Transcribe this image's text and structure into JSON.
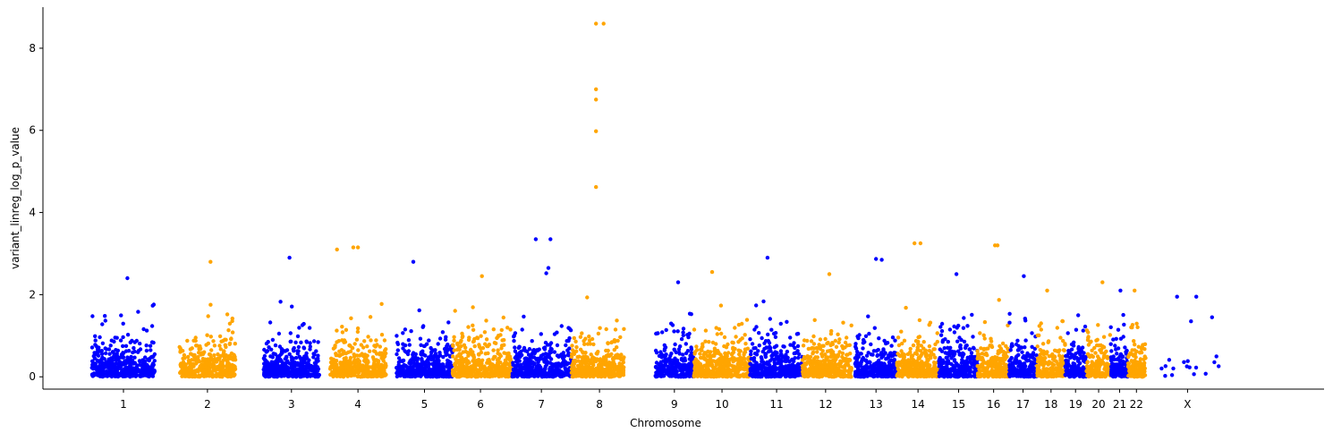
{
  "chart_data": {
    "type": "scatter",
    "title": "",
    "xlabel": "Chromosome",
    "ylabel": "variant_linreg_log_p_value",
    "ylim": [
      -0.3,
      9.0
    ],
    "yticks": [
      0,
      2,
      4,
      6,
      8
    ],
    "grid": false,
    "legend": "none",
    "colors": {
      "odd_index": "#0000ff",
      "even_index": "#ffa500"
    },
    "chromosomes": [
      {
        "label": "1",
        "start": 0.3,
        "end": 1.2,
        "label_pos": 0.75,
        "color": "#0000ff",
        "peak": 2.4
      },
      {
        "label": "2",
        "start": 1.55,
        "end": 2.35,
        "label_pos": 1.95,
        "color": "#ffa500",
        "peak": 2.8
      },
      {
        "label": "3",
        "start": 2.75,
        "end": 3.55,
        "label_pos": 3.15,
        "color": "#0000ff",
        "peak": 2.9
      },
      {
        "label": "4",
        "start": 3.7,
        "end": 4.5,
        "label_pos": 4.1,
        "color": "#ffa500",
        "peak": 3.15
      },
      {
        "label": "5",
        "start": 4.65,
        "end": 5.45,
        "label_pos": 5.05,
        "color": "#0000ff",
        "peak": 2.8
      },
      {
        "label": "6",
        "start": 5.45,
        "end": 6.3,
        "label_pos": 5.85,
        "color": "#ffa500",
        "peak": 2.45
      },
      {
        "label": "7",
        "start": 6.3,
        "end": 7.15,
        "label_pos": 6.72,
        "color": "#0000ff",
        "peak": 3.35
      },
      {
        "label": "8",
        "start": 7.15,
        "end": 7.9,
        "label_pos": 7.55,
        "color": "#ffa500",
        "peak": 8.6
      },
      {
        "label": "9",
        "start": 8.35,
        "end": 8.9,
        "label_pos": 8.62,
        "color": "#0000ff",
        "peak": 2.3
      },
      {
        "label": "10",
        "start": 8.9,
        "end": 9.7,
        "label_pos": 9.3,
        "color": "#ffa500",
        "peak": 2.55
      },
      {
        "label": "11",
        "start": 9.7,
        "end": 10.45,
        "label_pos": 10.08,
        "color": "#0000ff",
        "peak": 2.9
      },
      {
        "label": "12",
        "start": 10.45,
        "end": 11.15,
        "label_pos": 10.78,
        "color": "#ffa500",
        "peak": 2.5
      },
      {
        "label": "13",
        "start": 11.2,
        "end": 11.8,
        "label_pos": 11.5,
        "color": "#0000ff",
        "peak": 2.85
      },
      {
        "label": "14",
        "start": 11.8,
        "end": 12.4,
        "label_pos": 12.1,
        "color": "#ffa500",
        "peak": 3.25
      },
      {
        "label": "15",
        "start": 12.4,
        "end": 12.95,
        "label_pos": 12.68,
        "color": "#0000ff",
        "peak": 2.5
      },
      {
        "label": "16",
        "start": 12.95,
        "end": 13.4,
        "label_pos": 13.18,
        "color": "#ffa500",
        "peak": 3.2
      },
      {
        "label": "17",
        "start": 13.4,
        "end": 13.8,
        "label_pos": 13.6,
        "color": "#0000ff",
        "peak": 2.45
      },
      {
        "label": "18",
        "start": 13.8,
        "end": 14.2,
        "label_pos": 14.0,
        "color": "#ffa500",
        "peak": 2.1
      },
      {
        "label": "19",
        "start": 14.2,
        "end": 14.5,
        "label_pos": 14.35,
        "color": "#0000ff",
        "peak": 1.5
      },
      {
        "label": "20",
        "start": 14.5,
        "end": 14.85,
        "label_pos": 14.68,
        "color": "#ffa500",
        "peak": 2.3
      },
      {
        "label": "21",
        "start": 14.85,
        "end": 15.1,
        "label_pos": 14.98,
        "color": "#0000ff",
        "peak": 2.1
      },
      {
        "label": "22",
        "start": 15.1,
        "end": 15.35,
        "label_pos": 15.22,
        "color": "#ffa500",
        "peak": 2.1
      },
      {
        "label": "X",
        "start": 15.5,
        "end": 16.4,
        "label_pos": 15.95,
        "color": "#0000ff",
        "peak": 1.95
      }
    ],
    "xlim": [
      -0.4,
      17.9
    ],
    "notable_points": [
      {
        "chromosome": "8",
        "x": 7.5,
        "y": 8.6
      },
      {
        "chromosome": "8",
        "x": 7.5,
        "y": 7.0
      },
      {
        "chromosome": "8",
        "x": 7.5,
        "y": 6.75
      },
      {
        "chromosome": "8",
        "x": 7.5,
        "y": 5.98
      },
      {
        "chromosome": "8",
        "x": 7.5,
        "y": 4.62
      },
      {
        "chromosome": "7",
        "x": 6.85,
        "y": 3.35
      },
      {
        "chromosome": "7",
        "x": 6.82,
        "y": 2.65
      },
      {
        "chromosome": "7",
        "x": 6.79,
        "y": 2.52
      },
      {
        "chromosome": "14",
        "x": 12.05,
        "y": 3.25
      },
      {
        "chromosome": "16",
        "x": 13.2,
        "y": 3.2
      },
      {
        "chromosome": "4",
        "x": 4.1,
        "y": 3.15
      },
      {
        "chromosome": "4",
        "x": 3.8,
        "y": 3.1
      },
      {
        "chromosome": "13",
        "x": 11.5,
        "y": 2.87
      },
      {
        "chromosome": "X",
        "x": 15.8,
        "y": 1.95
      },
      {
        "chromosome": "X",
        "x": 16.0,
        "y": 1.35
      },
      {
        "chromosome": "X",
        "x": 16.3,
        "y": 1.45
      }
    ]
  }
}
